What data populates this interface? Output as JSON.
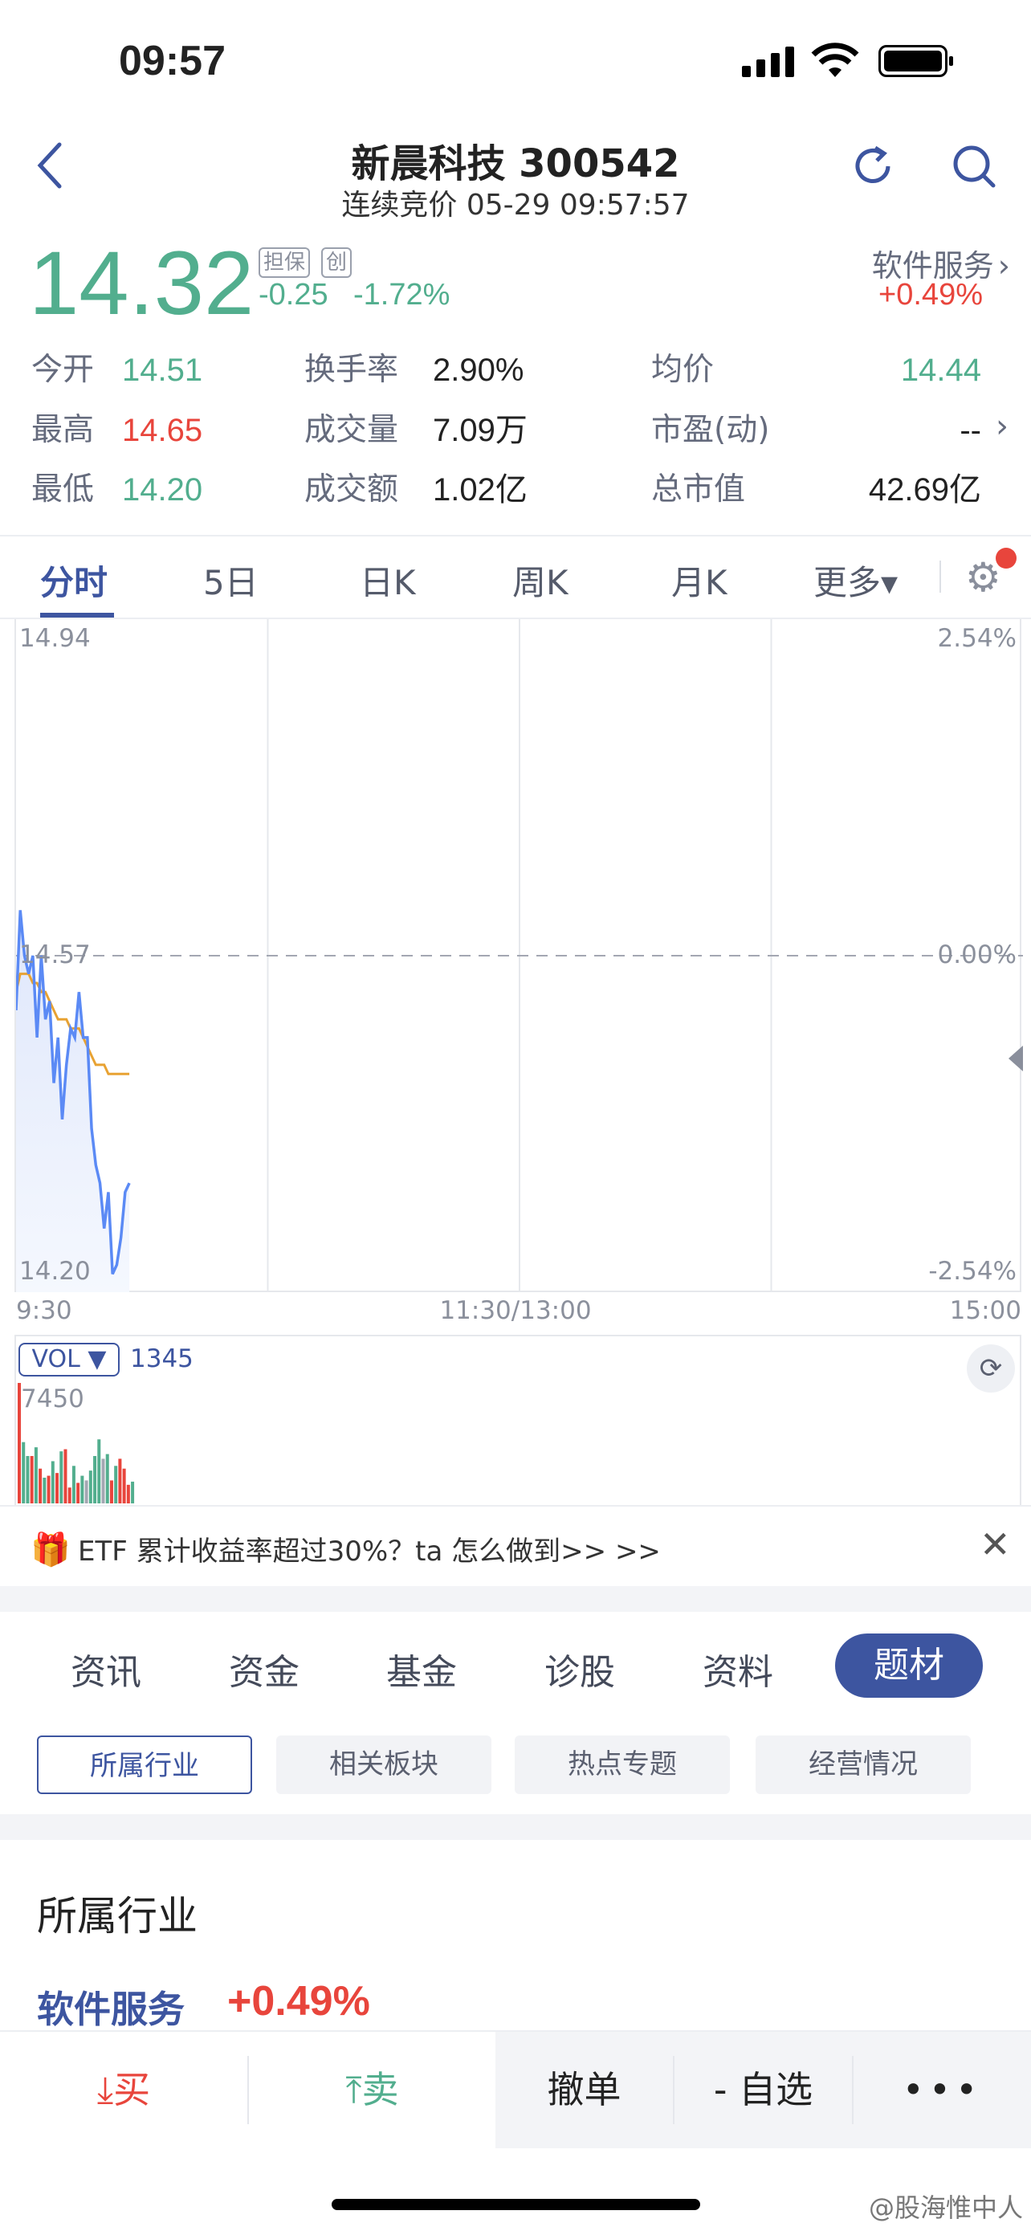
{
  "status_bar": {
    "time": "09:57"
  },
  "header": {
    "title": "新晨科技 300542",
    "subtitle": "连续竞价 05-29 09:57:57",
    "icons": [
      "back-icon",
      "refresh-icon",
      "search-icon"
    ]
  },
  "quote": {
    "price": "14.32",
    "tags": [
      "担保",
      "创"
    ],
    "change": "-0.25",
    "change_pct": "-1.72%",
    "sector": "软件服务",
    "sector_change": "+0.49%"
  },
  "stats": [
    [
      {
        "label": "今开",
        "value": "14.51",
        "color": "green"
      },
      {
        "label": "换手率",
        "value": "2.90%"
      },
      {
        "label": "均价",
        "value": "14.44",
        "color": "green"
      }
    ],
    [
      {
        "label": "最高",
        "value": "14.65",
        "color": "red"
      },
      {
        "label": "成交量",
        "value": "7.09万"
      },
      {
        "label": "市盈(动)",
        "value": "--"
      }
    ],
    [
      {
        "label": "最低",
        "value": "14.20",
        "color": "green"
      },
      {
        "label": "成交额",
        "value": "1.02亿"
      },
      {
        "label": "总市值",
        "value": "42.69亿"
      }
    ]
  ],
  "chart_tabs": [
    {
      "label": "分时",
      "active": true
    },
    {
      "label": "5日"
    },
    {
      "label": "日K"
    },
    {
      "label": "周K"
    },
    {
      "label": "月K"
    },
    {
      "label": "更多▾"
    }
  ],
  "colors": {
    "up": "#e8453c",
    "down": "#52ae8e",
    "flat": "#a3a7b2",
    "price_line": "#5b8af5",
    "avg_line": "#e8a232",
    "accent": "#3d55a0"
  },
  "chart_data": {
    "type": "line",
    "y_labels_left": {
      "top": "14.94",
      "mid": "14.57",
      "bottom": "14.20"
    },
    "y_labels_right": {
      "top": "2.54%",
      "mid": "0.00%",
      "bottom": "-2.54%"
    },
    "x_labels": [
      "9:30",
      "11:30/13:00",
      "15:00"
    ],
    "ylim": [
      14.2,
      14.94
    ],
    "prev_close": 14.57,
    "x": [
      "09:30",
      "09:31",
      "09:32",
      "09:33",
      "09:34",
      "09:35",
      "09:36",
      "09:37",
      "09:38",
      "09:39",
      "09:40",
      "09:41",
      "09:42",
      "09:43",
      "09:44",
      "09:45",
      "09:46",
      "09:47",
      "09:48",
      "09:49",
      "09:50",
      "09:51",
      "09:52",
      "09:53",
      "09:54",
      "09:55",
      "09:56",
      "09:57"
    ],
    "series": [
      {
        "values": [
          14.51,
          14.62,
          14.57,
          14.55,
          14.57,
          14.48,
          14.57,
          14.5,
          14.52,
          14.43,
          14.48,
          14.39,
          14.45,
          14.49,
          14.48,
          14.53,
          14.48,
          14.48,
          14.38,
          14.34,
          14.32,
          14.27,
          14.31,
          14.22,
          14.23,
          14.26,
          14.31,
          14.32
        ]
      },
      {
        "values": [
          14.53,
          14.55,
          14.55,
          14.55,
          14.54,
          14.54,
          14.53,
          14.53,
          14.52,
          14.51,
          14.5,
          14.5,
          14.5,
          14.49,
          14.49,
          14.49,
          14.48,
          14.47,
          14.46,
          14.45,
          14.45,
          14.45,
          14.44,
          14.44,
          14.44,
          14.44,
          14.44,
          14.44
        ]
      }
    ],
    "volume": {
      "label": "VOL ▼",
      "current": "1345",
      "max_label": "7450",
      "max": 7450,
      "values": [
        7450,
        3790,
        2930,
        2930,
        3470,
        2150,
        1590,
        1710,
        2610,
        1880,
        3220,
        3350,
        980,
        2320,
        1270,
        1710,
        1420,
        2030,
        2930,
        3960,
        2760,
        3050,
        1420,
        2320,
        2760,
        2150,
        1150,
        1345
      ],
      "direction": [
        "up",
        "down",
        "down",
        "up",
        "down",
        "up",
        "down",
        "up",
        "down",
        "up",
        "down",
        "up",
        "up",
        "down",
        "up",
        "down",
        "flat",
        "down",
        "down",
        "down",
        "flat",
        "down",
        "up",
        "down",
        "up",
        "up",
        "up",
        "down"
      ]
    }
  },
  "banner": {
    "text": "ETF 累计收益率超过30%？ta 怎么做到>> >>"
  },
  "info_tabs": [
    {
      "label": "资讯"
    },
    {
      "label": "资金"
    },
    {
      "label": "基金"
    },
    {
      "label": "诊股"
    },
    {
      "label": "资料"
    },
    {
      "label": "题材",
      "active": true
    }
  ],
  "sub_tabs": [
    {
      "label": "所属行业",
      "active": true
    },
    {
      "label": "相关板块"
    },
    {
      "label": "热点专题"
    },
    {
      "label": "经营情况"
    }
  ],
  "section": {
    "title": "所属行业",
    "industry": "软件服务",
    "industry_change": "+0.49%"
  },
  "bottom_bar": {
    "buy": "买",
    "sell": "卖",
    "cancel": "撤单",
    "watch": "- 自选",
    "more": "•••"
  },
  "watermark": "@股海惟中人"
}
